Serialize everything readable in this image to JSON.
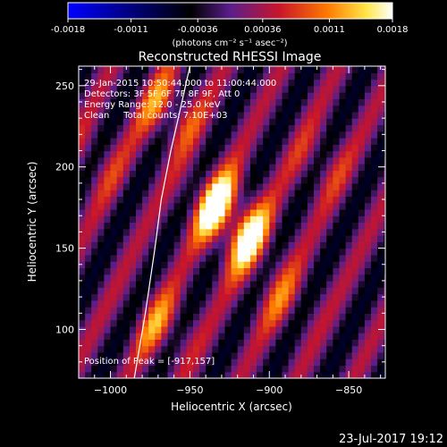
{
  "colorbar": {
    "tick_labels": [
      "-0.0018",
      "-0.0011",
      "-0.00036",
      "0.00036",
      "0.0011",
      "0.0018"
    ],
    "units": "(photons cm⁻² s⁻¹ asec⁻²)",
    "range": [
      -0.0018,
      0.0018
    ]
  },
  "chart_data": {
    "type": "heatmap",
    "title": "Reconstructed RHESSI Image",
    "xlabel": "Heliocentric X (arcsec)",
    "ylabel": "Heliocentric Y (arcsec)",
    "xlim": [
      -1020,
      -827
    ],
    "ylim": [
      70,
      262
    ],
    "x_ticks": [
      -1000,
      -950,
      -900,
      -850
    ],
    "x_tick_labels": [
      "−1000",
      "−950",
      "−900",
      "−850"
    ],
    "y_ticks": [
      100,
      150,
      200,
      250
    ],
    "y_tick_labels": [
      "100",
      "150",
      "200",
      "250"
    ],
    "pixel_size_arcsec": 4,
    "annotations": [
      "29-Jan-2015 10:50:44.000 to 11:00:44.000",
      "Detectors: 3F 5F 6F 7F 8F 9F, Att 0",
      "Energy Range: 12.0 - 25.0 keV",
      "Clean     Total counts: 7.10E+03"
    ],
    "peak_label": "Position of Peak = [-917,157]",
    "peak": [
      -917,
      157
    ],
    "sources": [
      {
        "x": -935,
        "y": 175,
        "strength": 1.0
      },
      {
        "x": -918,
        "y": 156,
        "strength": 1.0
      },
      {
        "x": -965,
        "y": 233,
        "strength": 0.7
      },
      {
        "x": -970,
        "y": 100,
        "strength": 0.55
      },
      {
        "x": -895,
        "y": 118,
        "strength": 0.4
      },
      {
        "x": -870,
        "y": 200,
        "strength": 0.35
      },
      {
        "x": -1010,
        "y": 200,
        "strength": 0.3
      }
    ],
    "limb_curve_x": [
      -985,
      -978,
      -972,
      -968,
      -962,
      -955,
      -950
    ],
    "limb_curve_y": [
      70,
      110,
      150,
      180,
      210,
      240,
      262
    ]
  },
  "footer_timestamp": "23-Jul-2017 19:12"
}
